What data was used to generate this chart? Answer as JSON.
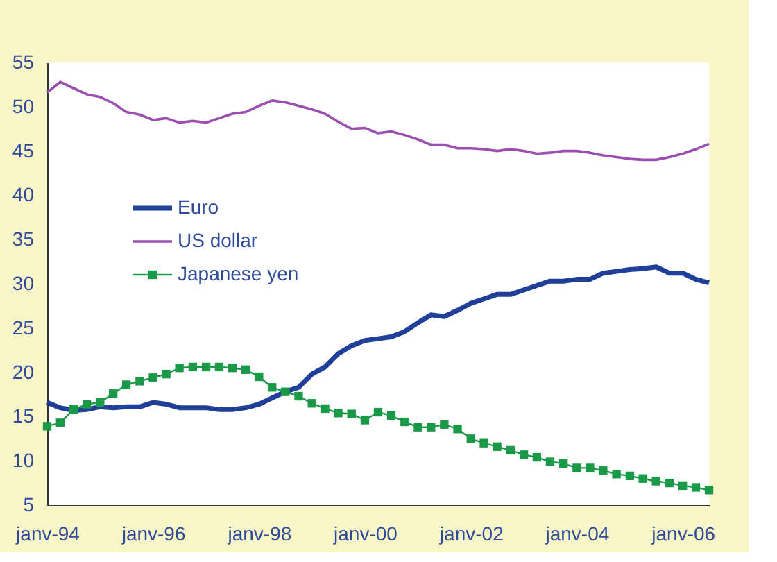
{
  "chart_data": {
    "type": "line",
    "x": [
      "1994-01",
      "1994-04",
      "1994-07",
      "1994-10",
      "1995-01",
      "1995-04",
      "1995-07",
      "1995-10",
      "1996-01",
      "1996-04",
      "1996-07",
      "1996-10",
      "1997-01",
      "1997-04",
      "1997-07",
      "1997-10",
      "1998-01",
      "1998-04",
      "1998-07",
      "1998-10",
      "1999-01",
      "1999-04",
      "1999-07",
      "1999-10",
      "2000-01",
      "2000-04",
      "2000-07",
      "2000-10",
      "2001-01",
      "2001-04",
      "2001-07",
      "2001-10",
      "2002-01",
      "2002-04",
      "2002-07",
      "2002-10",
      "2003-01",
      "2003-04",
      "2003-07",
      "2003-10",
      "2004-01",
      "2004-04",
      "2004-07",
      "2004-10",
      "2005-01",
      "2005-04",
      "2005-07",
      "2005-10",
      "2006-01",
      "2006-04",
      "2006-07"
    ],
    "series": [
      {
        "name": "Euro",
        "color": "#1f3f99",
        "marker": "none",
        "values": [
          16.6,
          16.0,
          15.7,
          15.8,
          16.1,
          16.0,
          16.1,
          16.1,
          16.6,
          16.4,
          16.0,
          16.0,
          16.0,
          15.8,
          15.8,
          16.0,
          16.4,
          17.1,
          17.8,
          18.3,
          19.8,
          20.6,
          22.1,
          23.0,
          23.6,
          23.8,
          24.0,
          24.6,
          25.6,
          26.5,
          26.3,
          27.0,
          27.8,
          28.3,
          28.8,
          28.8,
          29.3,
          29.8,
          30.3,
          30.3,
          30.5,
          30.5,
          31.2,
          31.4,
          31.6,
          31.7,
          31.9,
          31.2,
          31.2,
          30.5,
          30.1
        ]
      },
      {
        "name": "US dollar",
        "color": "#9b4fb0",
        "marker": "none",
        "values": [
          51.6,
          52.8,
          52.1,
          51.4,
          51.1,
          50.4,
          49.4,
          49.1,
          48.5,
          48.7,
          48.2,
          48.4,
          48.2,
          48.7,
          49.2,
          49.4,
          50.1,
          50.7,
          50.5,
          50.1,
          49.7,
          49.2,
          48.3,
          47.5,
          47.6,
          47.0,
          47.2,
          46.8,
          46.3,
          45.7,
          45.7,
          45.3,
          45.3,
          45.2,
          45.0,
          45.2,
          45.0,
          44.7,
          44.8,
          45.0,
          45.0,
          44.8,
          44.5,
          44.3,
          44.1,
          44.0,
          44.0,
          44.3,
          44.7,
          45.2,
          45.8
        ]
      },
      {
        "name": "Japanese yen",
        "color": "#1a9a48",
        "marker": "square",
        "values": [
          13.9,
          14.3,
          15.8,
          16.4,
          16.6,
          17.6,
          18.6,
          19.0,
          19.4,
          19.8,
          20.5,
          20.6,
          20.6,
          20.6,
          20.5,
          20.3,
          19.5,
          18.3,
          17.8,
          17.3,
          16.5,
          15.9,
          15.4,
          15.3,
          14.6,
          15.5,
          15.1,
          14.4,
          13.8,
          13.8,
          14.1,
          13.6,
          12.5,
          12.0,
          11.6,
          11.2,
          10.7,
          10.4,
          9.9,
          9.7,
          9.2,
          9.2,
          8.9,
          8.5,
          8.3,
          8.0,
          7.7,
          7.5,
          7.2,
          7.0,
          6.7
        ]
      }
    ],
    "xlim": [
      "1994-01",
      "2006-07"
    ],
    "xticks": [
      {
        "value": "1994-01",
        "label": "janv-94"
      },
      {
        "value": "1996-01",
        "label": "janv-96"
      },
      {
        "value": "1998-01",
        "label": "janv-98"
      },
      {
        "value": "2000-01",
        "label": "janv-00"
      },
      {
        "value": "2002-01",
        "label": "janv-02"
      },
      {
        "value": "2004-01",
        "label": "janv-04"
      },
      {
        "value": "2006-01",
        "label": "janv-06"
      }
    ],
    "ylim": [
      5,
      55
    ],
    "yticks": [
      5,
      10,
      15,
      20,
      25,
      30,
      35,
      40,
      45,
      50,
      55
    ],
    "grid": false,
    "legend": "left"
  }
}
